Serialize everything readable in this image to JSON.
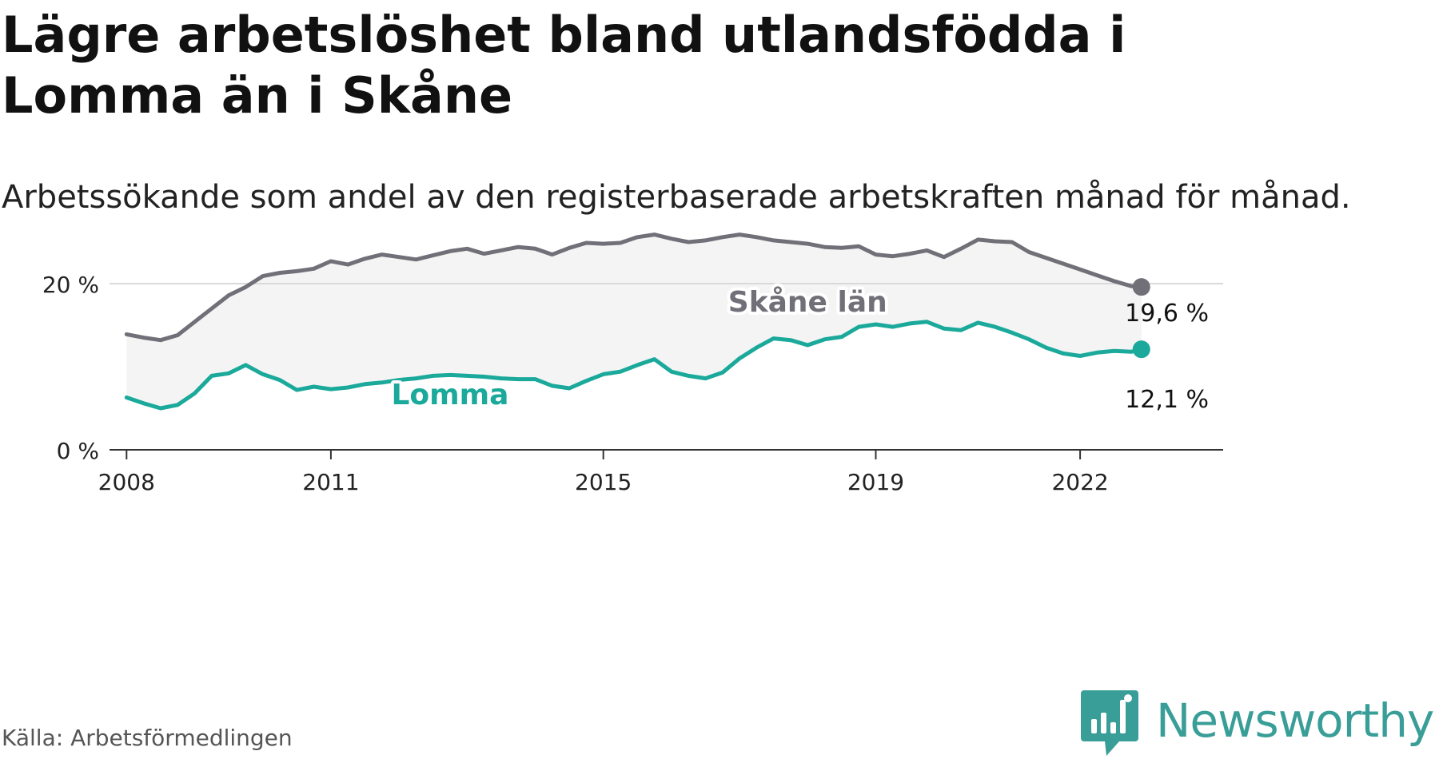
{
  "title": "Lägre arbetslöshet bland utlandsfödda i Lomma än i Skåne",
  "subtitle": "Arbetssökande som andel av den registerbaserade arbetskraften månad för månad.",
  "source": "Källa: Arbetsförmedlingen",
  "brand": "Newsworthy",
  "colors": {
    "skane": "#717078",
    "lomma": "#1aa99a",
    "band": "#f4f4f4",
    "axis": "#333333",
    "grid": "#d9d9d9",
    "brand": "#3a9e98"
  },
  "chart_data": {
    "type": "line",
    "title": "Lägre arbetslöshet bland utlandsfödda i Lomma än i Skåne",
    "xlabel": "",
    "ylabel": "",
    "ylim": [
      0,
      30
    ],
    "xlim": [
      2007.75,
      2024.1
    ],
    "x_ticks": [
      2008,
      2011,
      2015,
      2019,
      2022
    ],
    "x_tick_labels": [
      "2008",
      "2011",
      "2015",
      "2019",
      "2022"
    ],
    "y_ticks": [
      0,
      20
    ],
    "y_tick_labels": [
      "0 %",
      "20 %"
    ],
    "grid": "horizontal at 20",
    "series": [
      {
        "name": "Skåne län",
        "label": "Skåne län",
        "end_label": "19,6 %",
        "end_value": 19.6,
        "x": [
          2008.0,
          2008.25,
          2008.5,
          2008.75,
          2009.0,
          2009.25,
          2009.5,
          2009.75,
          2010.0,
          2010.25,
          2010.5,
          2010.75,
          2011.0,
          2011.25,
          2011.5,
          2011.75,
          2012.0,
          2012.25,
          2012.5,
          2012.75,
          2013.0,
          2013.25,
          2013.5,
          2013.75,
          2014.0,
          2014.25,
          2014.5,
          2014.75,
          2015.0,
          2015.25,
          2015.5,
          2015.75,
          2016.0,
          2016.25,
          2016.5,
          2016.75,
          2017.0,
          2017.25,
          2017.5,
          2017.75,
          2018.0,
          2018.25,
          2018.5,
          2018.75,
          2019.0,
          2019.25,
          2019.5,
          2019.75,
          2020.0,
          2020.25,
          2020.5,
          2020.75,
          2021.0,
          2021.25,
          2021.5,
          2021.75,
          2022.0,
          2022.25,
          2022.5,
          2022.75,
          2022.9
        ],
        "values": [
          13.9,
          13.5,
          13.2,
          13.8,
          15.4,
          17.0,
          18.6,
          19.6,
          20.9,
          21.3,
          21.5,
          21.8,
          22.7,
          22.3,
          23.0,
          23.5,
          23.2,
          22.9,
          23.4,
          23.9,
          24.2,
          23.6,
          24.0,
          24.4,
          24.2,
          23.5,
          24.3,
          24.9,
          24.8,
          24.9,
          25.6,
          25.9,
          25.4,
          25.0,
          25.2,
          25.6,
          25.9,
          25.6,
          25.2,
          25.0,
          24.8,
          24.4,
          24.3,
          24.5,
          23.5,
          23.3,
          23.6,
          24.0,
          23.2,
          24.2,
          25.3,
          25.1,
          25.0,
          23.8,
          23.1,
          22.4,
          21.7,
          21.0,
          20.3,
          19.7,
          19.6
        ]
      },
      {
        "name": "Lomma",
        "label": "Lomma",
        "end_label": "12,1 %",
        "end_value": 12.1,
        "x": [
          2008.0,
          2008.25,
          2008.5,
          2008.75,
          2009.0,
          2009.25,
          2009.5,
          2009.75,
          2010.0,
          2010.25,
          2010.5,
          2010.75,
          2011.0,
          2011.25,
          2011.5,
          2011.75,
          2012.0,
          2012.25,
          2012.5,
          2012.75,
          2013.0,
          2013.25,
          2013.5,
          2013.75,
          2014.0,
          2014.25,
          2014.5,
          2014.75,
          2015.0,
          2015.25,
          2015.5,
          2015.75,
          2016.0,
          2016.25,
          2016.5,
          2016.75,
          2017.0,
          2017.25,
          2017.5,
          2017.75,
          2018.0,
          2018.25,
          2018.5,
          2018.75,
          2019.0,
          2019.25,
          2019.5,
          2019.75,
          2020.0,
          2020.25,
          2020.5,
          2020.75,
          2021.0,
          2021.25,
          2021.5,
          2021.75,
          2022.0,
          2022.25,
          2022.5,
          2022.75,
          2022.9
        ],
        "values": [
          6.3,
          5.6,
          5.0,
          5.4,
          6.8,
          8.9,
          9.2,
          10.2,
          9.1,
          8.4,
          7.2,
          7.6,
          7.3,
          7.5,
          7.9,
          8.1,
          8.4,
          8.6,
          8.9,
          9.0,
          8.9,
          8.8,
          8.6,
          8.5,
          8.5,
          7.7,
          7.4,
          8.3,
          9.1,
          9.4,
          10.2,
          10.9,
          9.4,
          8.9,
          8.6,
          9.3,
          11.0,
          12.3,
          13.4,
          13.2,
          12.6,
          13.3,
          13.6,
          14.8,
          15.1,
          14.8,
          15.2,
          15.4,
          14.6,
          14.4,
          15.3,
          14.8,
          14.1,
          13.3,
          12.3,
          11.6,
          11.3,
          11.7,
          11.9,
          11.8,
          12.1
        ]
      }
    ],
    "band": "shaded area between Skåne län and Lomma"
  }
}
